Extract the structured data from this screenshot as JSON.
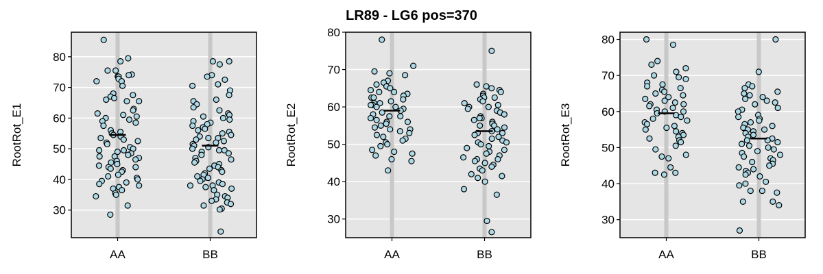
{
  "title": "LR89 - LG6 pos=370",
  "colors": {
    "panel_bg": "#E5E5E5",
    "gridline": "#FFFFFF",
    "category_band": "#C8C8C8",
    "point_fill": "#ADD8E6",
    "point_stroke": "#000000",
    "mean_line": "#000000"
  },
  "chart_data": [
    {
      "type": "scatter",
      "ylabel": "RootRot_E1",
      "categories": [
        "AA",
        "BB"
      ],
      "ylim": [
        21,
        88
      ],
      "yticks": [
        30,
        40,
        50,
        60,
        70,
        80
      ],
      "grid": true,
      "means": [
        54.5,
        51
      ],
      "series": [
        {
          "category": "AA",
          "values": [
            85.5,
            79.5,
            78.5,
            75.5,
            75.5,
            74.2,
            74,
            73.6,
            73.5,
            72.8,
            72,
            72,
            70.5,
            68,
            67.5,
            67,
            66.5,
            66,
            65.5,
            65.5,
            63,
            62.5,
            61.5,
            61,
            60.5,
            60,
            59.5,
            59,
            58.5,
            57.5,
            56,
            55.5,
            55,
            54.5,
            54,
            53.5,
            53,
            52.5,
            52,
            51.5,
            50.5,
            50,
            49.5,
            49.5,
            49,
            48.5,
            48,
            47.5,
            47.5,
            47,
            46.5,
            46,
            45.5,
            45,
            44.5,
            44,
            44,
            43.5,
            43,
            42.5,
            41.5,
            41,
            40.5,
            40,
            39.5,
            39,
            38.5,
            38,
            37.5,
            37,
            36.5,
            35.5,
            35,
            34.5,
            31.5,
            28.5
          ]
        },
        {
          "category": "BB",
          "values": [
            78.5,
            78.5,
            77.5,
            74,
            73.5,
            72.5,
            71,
            70.5,
            69,
            67.5,
            66,
            65.5,
            64.5,
            63.5,
            62.5,
            61.5,
            61,
            60.5,
            60,
            59.5,
            59,
            58.5,
            58,
            57.5,
            57,
            56.5,
            56,
            55.5,
            55,
            54.5,
            54,
            53.5,
            53.5,
            53,
            52.5,
            52,
            51.5,
            51,
            50.5,
            50,
            49.5,
            49.5,
            49,
            48.5,
            48,
            47,
            46.5,
            46,
            45.5,
            45,
            44.5,
            44,
            43.5,
            43,
            42.5,
            42,
            41.5,
            41,
            40.5,
            40,
            39.5,
            39,
            38.5,
            38,
            38,
            37.5,
            37,
            36.5,
            35,
            34.5,
            34,
            33.5,
            33,
            32.5,
            32,
            31.5,
            30.5,
            30.2,
            23
          ]
        }
      ]
    },
    {
      "type": "scatter",
      "ylabel": "RootRot_E2",
      "categories": [
        "AA",
        "BB"
      ],
      "ylim": [
        25,
        80
      ],
      "yticks": [
        30,
        40,
        50,
        60,
        70,
        80
      ],
      "grid": true,
      "means": [
        59,
        53.5
      ],
      "series": [
        {
          "category": "AA",
          "values": [
            78,
            71,
            69.5,
            69,
            68.5,
            67,
            66.5,
            66,
            65.5,
            65,
            64.5,
            64,
            64,
            63.5,
            63,
            62.5,
            62.5,
            62,
            61.5,
            61,
            61,
            60.5,
            60.5,
            60,
            60,
            59.5,
            59,
            58.5,
            58,
            57.5,
            57.5,
            57,
            56.5,
            56,
            56,
            55.5,
            55,
            54.5,
            54,
            54,
            53.5,
            53,
            52.5,
            52,
            51.5,
            51,
            50.5,
            50,
            49.5,
            48.5,
            48,
            47.5,
            47,
            46,
            45.5,
            43
          ]
        },
        {
          "category": "BB",
          "values": [
            75,
            66,
            65.5,
            65,
            64.5,
            64,
            63.5,
            63,
            62.5,
            62.5,
            62,
            61.5,
            61,
            60.5,
            60,
            60,
            59.5,
            59,
            58.5,
            58,
            57.5,
            57,
            57,
            56.5,
            56,
            55.5,
            55,
            55,
            54.5,
            54,
            53.5,
            53,
            53,
            52.5,
            52,
            51.5,
            51,
            50.5,
            50.5,
            50,
            49.5,
            49,
            48.5,
            48,
            47.5,
            47,
            46.5,
            46,
            46,
            45.5,
            45,
            44.5,
            44,
            43.5,
            43,
            42,
            41.5,
            41,
            40,
            38,
            36.5,
            29.5,
            26.5
          ]
        }
      ]
    },
    {
      "type": "scatter",
      "ylabel": "RootRot_E3",
      "categories": [
        "AA",
        "BB"
      ],
      "ylim": [
        25,
        82
      ],
      "yticks": [
        30,
        40,
        50,
        60,
        70,
        80
      ],
      "grid": true,
      "means": [
        59.5,
        52.5
      ],
      "series": [
        {
          "category": "AA",
          "values": [
            80,
            78.5,
            74,
            73,
            72,
            71,
            70,
            69.5,
            69,
            68,
            67.5,
            67,
            66.5,
            66,
            65.5,
            65,
            64.5,
            64,
            63.5,
            63,
            62.5,
            62,
            62,
            61.5,
            61,
            60.5,
            60,
            60,
            59.5,
            59,
            58.5,
            58,
            57.5,
            57,
            56.5,
            56,
            55.5,
            55,
            54.5,
            54,
            53.5,
            53,
            52.5,
            52,
            51.5,
            50.5,
            49.5,
            48,
            47.5,
            47,
            44.5,
            43,
            43,
            42.5
          ]
        },
        {
          "category": "BB",
          "values": [
            80,
            71,
            67.5,
            67,
            66.5,
            65.5,
            65,
            64.5,
            64,
            63.5,
            63,
            62.5,
            62,
            61,
            60.5,
            60,
            59,
            58.5,
            58,
            57.5,
            57,
            56.5,
            56,
            55.5,
            55,
            55,
            54.5,
            54,
            53.5,
            53,
            52.5,
            52,
            52,
            51.5,
            51,
            50.5,
            50,
            49.5,
            49,
            48.5,
            48,
            47.5,
            47,
            46.5,
            46,
            45.5,
            45,
            44.5,
            44,
            43.5,
            43,
            42.5,
            42,
            40.5,
            40,
            39.5,
            38,
            38,
            37.5,
            35,
            35,
            34,
            27
          ]
        }
      ]
    }
  ]
}
